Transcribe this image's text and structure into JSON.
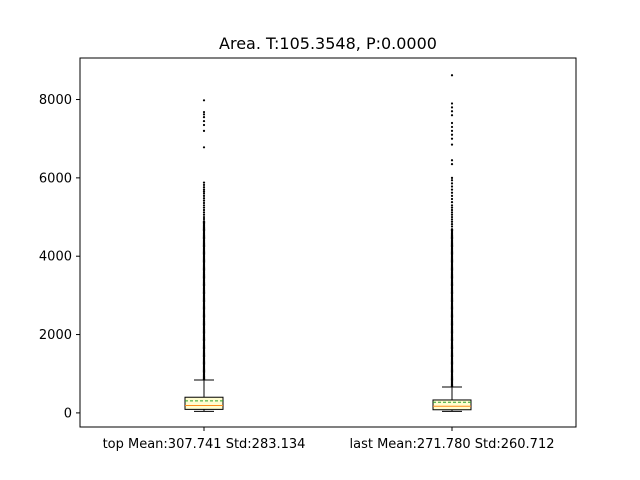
{
  "chart_data": {
    "type": "box",
    "title": "Area. T:105.3548, P:0.0000",
    "xlabel": "",
    "ylabel": "",
    "categories": [
      "top Mean:307.741 Std:283.134",
      "last Mean:271.780 Std:260.712"
    ],
    "ylim": [
      -360,
      9060
    ],
    "yticks": [
      0,
      2000,
      4000,
      6000,
      8000
    ],
    "grid": false,
    "colors": {
      "box_fill": "#fffdd0",
      "median": "#ff8c1a",
      "mean": "#2ca02c",
      "outlier": "#000000",
      "axis": "#000000"
    },
    "boxes": [
      {
        "category": "top Mean:307.741 Std:283.134",
        "whisker_low": 40,
        "q1": 90,
        "median": 190,
        "mean": 307.741,
        "q3": 400,
        "whisker_high": 840,
        "outliers": [
          {
            "from": 850,
            "to": 4900,
            "dense": true
          },
          4950,
          5000,
          5060,
          5120,
          5180,
          5240,
          5300,
          5360,
          5420,
          5480,
          5540,
          5600,
          5650,
          5700,
          5760,
          5820,
          5880,
          6780,
          7200,
          7350,
          7450,
          7550,
          7620,
          7680,
          7980
        ]
      },
      {
        "category": "last Mean:271.780 Std:260.712",
        "whisker_low": 40,
        "q1": 80,
        "median": 170,
        "mean": 271.78,
        "q3": 330,
        "whisker_high": 660,
        "outliers": [
          {
            "from": 670,
            "to": 4700,
            "dense": true
          },
          4760,
          4820,
          4880,
          4940,
          5000,
          5060,
          5120,
          5180,
          5240,
          5300,
          5380,
          5460,
          5540,
          5620,
          5700,
          5780,
          5860,
          5940,
          6000,
          6350,
          6450,
          6850,
          7000,
          7100,
          7200,
          7300,
          7400,
          7600,
          7700,
          7800,
          7900,
          8620
        ]
      }
    ]
  }
}
